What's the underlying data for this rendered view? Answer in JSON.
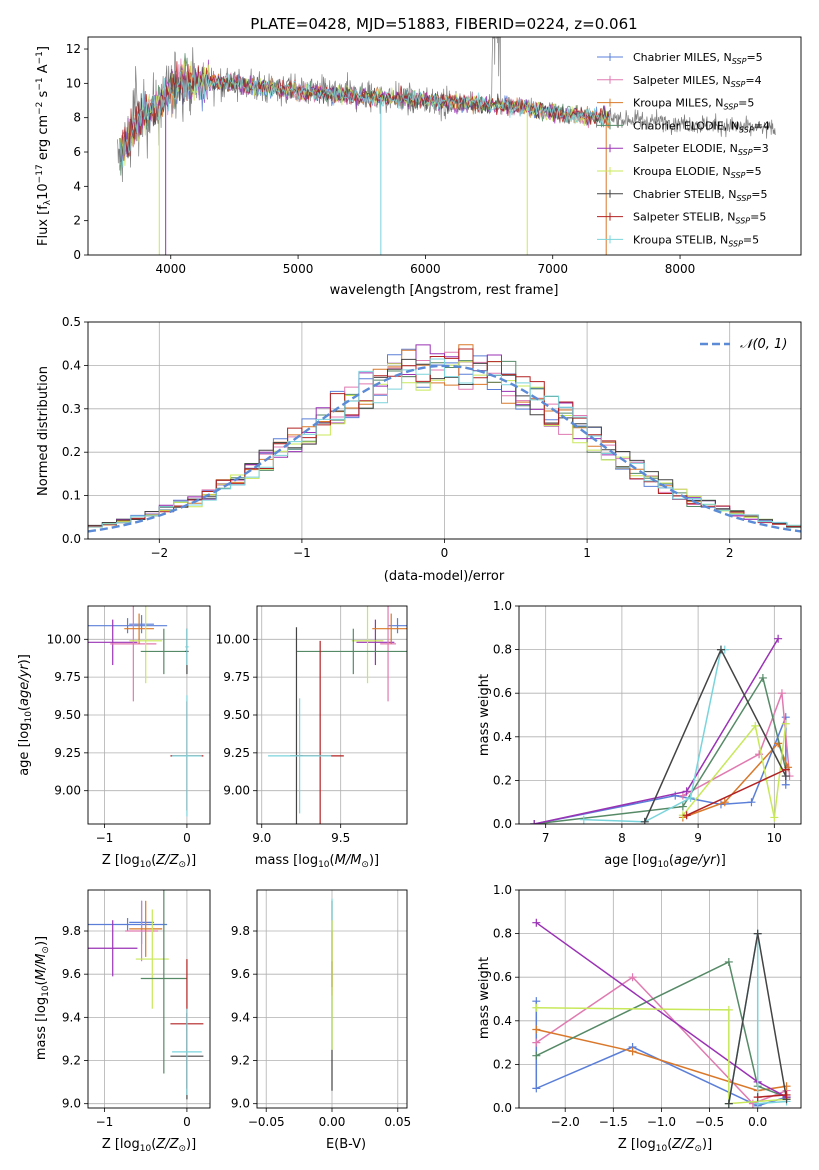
{
  "chart_data": [
    {
      "id": "spectrum",
      "type": "line",
      "title": "PLATE=0428, MJD=51883, FIBERID=0224, z=0.061",
      "xlabel": "wavelength [Angstrom, rest frame]",
      "ylabel": "Flux [f_λ 10^-17 erg cm^-2 s^-1 A^-1]",
      "xlim": [
        3350,
        8950
      ],
      "ylim": [
        0,
        12.7
      ],
      "xticks": [
        4000,
        5000,
        6000,
        7000,
        8000
      ],
      "yticks": [
        0,
        2,
        4,
        6,
        8,
        10,
        12
      ],
      "data_color": "#808080",
      "legend_position": "upper-right",
      "legend": [
        {
          "label": "Chabrier MILES, N",
          "sub": "SSP",
          "suffix": "=5",
          "color": "#5b7fd8"
        },
        {
          "label": "Salpeter MILES, N",
          "sub": "SSP",
          "suffix": "=4",
          "color": "#e07ab0"
        },
        {
          "label": "Kroupa MILES, N",
          "sub": "SSP",
          "suffix": "=5",
          "color": "#d9782a"
        },
        {
          "label": "Chabrier ELODIE, N",
          "sub": "SSP",
          "suffix": "=4",
          "color": "#568a67"
        },
        {
          "label": "Salpeter ELODIE, N",
          "sub": "SSP",
          "suffix": "=3",
          "color": "#9a32b5"
        },
        {
          "label": "Kroupa ELODIE, N",
          "sub": "SSP",
          "suffix": "=5",
          "color": "#c8e85a"
        },
        {
          "label": "Chabrier STELIB, N",
          "sub": "SSP",
          "suffix": "=5",
          "color": "#444444"
        },
        {
          "label": "Salpeter STELIB, N",
          "sub": "SSP",
          "suffix": "=5",
          "color": "#b22222"
        },
        {
          "label": "Kroupa STELIB, N",
          "sub": "SSP",
          "suffix": "=5",
          "color": "#7ad4dc"
        }
      ],
      "continuum": [
        [
          3580,
          5.5
        ],
        [
          3700,
          7.2
        ],
        [
          3800,
          8.2
        ],
        [
          3900,
          8.6
        ],
        [
          4000,
          9.6
        ],
        [
          4100,
          10.2
        ],
        [
          4200,
          10.0
        ],
        [
          4300,
          10.1
        ],
        [
          4500,
          10.0
        ],
        [
          4800,
          9.7
        ],
        [
          5200,
          9.4
        ],
        [
          5600,
          9.2
        ],
        [
          6000,
          9.0
        ],
        [
          6400,
          8.8
        ],
        [
          6800,
          8.6
        ],
        [
          7200,
          8.1
        ],
        [
          7600,
          7.9
        ],
        [
          8000,
          7.7
        ],
        [
          8400,
          7.5
        ],
        [
          8750,
          7.3
        ]
      ]
    },
    {
      "id": "residuals",
      "type": "line",
      "xlabel": "(data-model)/error",
      "ylabel": "Normed distribution",
      "xlim": [
        -2.5,
        2.5
      ],
      "ylim": [
        0,
        0.5
      ],
      "xticks": [
        -2,
        -1,
        0,
        1,
        2
      ],
      "yticks": [
        0.0,
        0.1,
        0.2,
        0.3,
        0.4,
        0.5
      ],
      "legend": [
        {
          "label": "𝒩(0, 1)",
          "color": "#5b8bd6",
          "style": "dashed"
        }
      ],
      "legend_position": "upper-right"
    },
    {
      "id": "age_vs_Z",
      "type": "scatter",
      "xlabel": "Z [log10(Z/Z_⊙)]",
      "ylabel": "age [log10(age/yr)]",
      "xlim": [
        -1.2,
        0.28
      ],
      "ylim": [
        8.78,
        10.22
      ],
      "xticks": [
        -1,
        0
      ],
      "yticks": [
        9.0,
        9.25,
        9.5,
        9.75,
        10.0
      ],
      "points": [
        {
          "x": -0.72,
          "y": 10.09,
          "xerr": 0.48,
          "yerr": 0.05,
          "color": "#5b7fd8"
        },
        {
          "x": -0.55,
          "y": 10.1,
          "xerr": 0.15,
          "yerr": 0.06,
          "color": "#5b7fd8"
        },
        {
          "x": -0.9,
          "y": 9.98,
          "xerr": 0.3,
          "yerr": 0.15,
          "color": "#9a32b5"
        },
        {
          "x": -0.65,
          "y": 9.97,
          "xerr": 0.28,
          "yerr": 0.38,
          "color": "#e07ab0"
        },
        {
          "x": -0.58,
          "y": 10.07,
          "xerr": 0.18,
          "yerr": 0.1,
          "color": "#d9782a"
        },
        {
          "x": -0.5,
          "y": 9.99,
          "xerr": 0.2,
          "yerr": 0.28,
          "color": "#c8e85a"
        },
        {
          "x": -0.28,
          "y": 9.92,
          "xerr": 0.28,
          "yerr": 0.15,
          "color": "#568a67"
        },
        {
          "x": 0.0,
          "y": 9.92,
          "xerr": 0.02,
          "yerr": 0.15,
          "color": "#444444"
        },
        {
          "x": 0.0,
          "y": 9.23,
          "xerr": 0.2,
          "yerr": 0.36,
          "color": "#b22222"
        },
        {
          "x": 0.0,
          "y": 9.23,
          "xerr": 0.18,
          "yerr": 0.4,
          "color": "#7ad4dc"
        },
        {
          "x": 0.0,
          "y": 9.95,
          "xerr": 0.02,
          "yerr": 0.12,
          "color": "#7ad4dc"
        }
      ]
    },
    {
      "id": "age_vs_mass",
      "type": "scatter",
      "xlabel": "mass [log10(M/M_⊙)]",
      "xlim": [
        8.97,
        9.92
      ],
      "ylim": [
        8.78,
        10.22
      ],
      "xticks": [
        9.0,
        9.5
      ],
      "yticks": [
        9.0,
        9.25,
        9.5,
        9.75,
        10.0
      ],
      "points": [
        {
          "x": 9.86,
          "y": 10.09,
          "xerr": 0.06,
          "yerr": 0.05,
          "color": "#5b7fd8"
        },
        {
          "x": 9.72,
          "y": 9.98,
          "xerr": 0.12,
          "yerr": 0.15,
          "color": "#9a32b5"
        },
        {
          "x": 9.8,
          "y": 9.97,
          "xerr": 0.05,
          "yerr": 0.38,
          "color": "#e07ab0"
        },
        {
          "x": 9.82,
          "y": 10.07,
          "xerr": 0.12,
          "yerr": 0.1,
          "color": "#d9782a"
        },
        {
          "x": 9.67,
          "y": 9.99,
          "xerr": 0.1,
          "yerr": 0.28,
          "color": "#c8e85a"
        },
        {
          "x": 9.58,
          "y": 9.92,
          "xerr": 0.36,
          "yerr": 0.15,
          "color": "#568a67"
        },
        {
          "x": 9.22,
          "y": 9.23,
          "xerr": 0.04,
          "yerr": 0.85,
          "color": "#444444"
        },
        {
          "x": 9.37,
          "y": 9.23,
          "xerr": 0.15,
          "yerr": 0.76,
          "color": "#b22222"
        },
        {
          "x": 9.24,
          "y": 9.23,
          "xerr": 0.2,
          "yerr": 0.38,
          "color": "#7ad4dc"
        }
      ]
    },
    {
      "id": "weight_vs_age",
      "type": "line",
      "xlabel": "age [log10(age/yr)]",
      "ylabel": "mass weight",
      "xlim": [
        6.65,
        10.35
      ],
      "ylim": [
        0,
        1.0
      ],
      "xticks": [
        7,
        8,
        9,
        10
      ],
      "yticks": [
        0.0,
        0.2,
        0.4,
        0.6,
        0.8,
        1.0
      ],
      "series": [
        {
          "color": "#5b7fd8",
          "points": [
            [
              6.85,
              0.0
            ],
            [
              8.7,
              0.13
            ],
            [
              9.3,
              0.09
            ],
            [
              9.7,
              0.1
            ],
            [
              10.15,
              0.49
            ],
            [
              10.15,
              0.18
            ]
          ]
        },
        {
          "color": "#e07ab0",
          "points": [
            [
              8.8,
              0.13
            ],
            [
              9.8,
              0.32
            ],
            [
              10.1,
              0.6
            ],
            [
              10.2,
              0.22
            ]
          ]
        },
        {
          "color": "#d9782a",
          "points": [
            [
              8.8,
              0.03
            ],
            [
              9.35,
              0.1
            ],
            [
              10.05,
              0.37
            ],
            [
              10.18,
              0.26
            ]
          ]
        },
        {
          "color": "#568a67",
          "points": [
            [
              6.85,
              0.0
            ],
            [
              8.8,
              0.08
            ],
            [
              9.85,
              0.67
            ],
            [
              10.15,
              0.25
            ]
          ]
        },
        {
          "color": "#9a32b5",
          "points": [
            [
              6.85,
              0.0
            ],
            [
              8.85,
              0.15
            ],
            [
              10.05,
              0.85
            ]
          ]
        },
        {
          "color": "#c8e85a",
          "points": [
            [
              8.8,
              0.04
            ],
            [
              9.75,
              0.45
            ],
            [
              10.0,
              0.03
            ],
            [
              10.15,
              0.46
            ]
          ]
        },
        {
          "color": "#7ad4dc",
          "points": [
            [
              7.5,
              0.02
            ],
            [
              8.3,
              0.01
            ],
            [
              8.9,
              0.12
            ],
            [
              9.3,
              0.8
            ],
            [
              9.35,
              0.8
            ]
          ]
        },
        {
          "color": "#444444",
          "points": [
            [
              8.3,
              0.01
            ],
            [
              9.3,
              0.8
            ],
            [
              10.15,
              0.22
            ]
          ]
        },
        {
          "color": "#b22222",
          "points": [
            [
              8.85,
              0.04
            ],
            [
              10.15,
              0.25
            ]
          ]
        }
      ]
    },
    {
      "id": "mass_vs_Z",
      "type": "scatter",
      "xlabel": "Z [log10(Z/Z_⊙)]",
      "ylabel": "mass [log10(M/M_⊙)]",
      "xlim": [
        -1.2,
        0.28
      ],
      "ylim": [
        8.98,
        9.99
      ],
      "xticks": [
        -1,
        0
      ],
      "yticks": [
        9.0,
        9.2,
        9.4,
        9.6,
        9.8
      ],
      "points": [
        {
          "x": -0.72,
          "y": 9.83,
          "xerr": 0.48,
          "yerr": 0.03,
          "color": "#5b7fd8"
        },
        {
          "x": -0.55,
          "y": 9.84,
          "xerr": 0.15,
          "yerr": 0.1,
          "color": "#5b7fd8"
        },
        {
          "x": -0.9,
          "y": 9.72,
          "xerr": 0.3,
          "yerr": 0.13,
          "color": "#9a32b5"
        },
        {
          "x": -0.55,
          "y": 9.8,
          "xerr": 0.2,
          "yerr": 0.14,
          "color": "#e07ab0"
        },
        {
          "x": -0.5,
          "y": 9.81,
          "xerr": 0.2,
          "yerr": 0.13,
          "color": "#d9782a"
        },
        {
          "x": -0.42,
          "y": 9.67,
          "xerr": 0.2,
          "yerr": 0.23,
          "color": "#c8e85a"
        },
        {
          "x": -0.28,
          "y": 9.58,
          "xerr": 0.28,
          "yerr": 0.44,
          "color": "#568a67"
        },
        {
          "x": 0.0,
          "y": 9.22,
          "xerr": 0.2,
          "yerr": 0.2,
          "color": "#444444"
        },
        {
          "x": 0.0,
          "y": 9.37,
          "xerr": 0.2,
          "yerr": 0.3,
          "color": "#b22222"
        },
        {
          "x": 0.0,
          "y": 9.24,
          "xerr": 0.18,
          "yerr": 0.2,
          "color": "#7ad4dc"
        }
      ]
    },
    {
      "id": "mass_vs_EBV",
      "type": "scatter",
      "xlabel": "E(B-V)",
      "xlim": [
        -0.057,
        0.057
      ],
      "ylim": [
        8.98,
        9.99
      ],
      "xticks": [
        -0.05,
        0.0,
        0.05
      ],
      "yticks": [
        9.0,
        9.2,
        9.4,
        9.6,
        9.8
      ],
      "points": [
        {
          "x": 0.0,
          "y": 9.5,
          "xerr": 0.0,
          "yerr": 0.44,
          "color": "#444444"
        },
        {
          "x": 0.0,
          "y": 9.6,
          "xerr": 0.0,
          "yerr": 0.35,
          "color": "#7ad4dc"
        },
        {
          "x": 0.0,
          "y": 9.65,
          "xerr": 0.0,
          "yerr": 0.15,
          "color": "#d9782a"
        },
        {
          "x": 0.0,
          "y": 9.6,
          "xerr": 0.0,
          "yerr": 0.06,
          "color": "#b22222"
        },
        {
          "x": 0.0,
          "y": 9.55,
          "xerr": 0.0,
          "yerr": 0.3,
          "color": "#c8e85a"
        }
      ]
    },
    {
      "id": "weight_vs_Z",
      "type": "line",
      "xlabel": "Z [log10(Z/Z_⊙)]",
      "ylabel": "mass weight",
      "xlim": [
        -2.48,
        0.45
      ],
      "ylim": [
        0,
        1.0
      ],
      "xticks": [
        -2.0,
        -1.5,
        -1.0,
        -0.5,
        0.0
      ],
      "yticks": [
        0.0,
        0.2,
        0.4,
        0.6,
        0.8,
        1.0
      ],
      "series": [
        {
          "color": "#5b7fd8",
          "points": [
            [
              -2.3,
              0.49
            ],
            [
              -2.3,
              0.09
            ],
            [
              -1.3,
              0.28
            ],
            [
              0.0,
              0.01
            ],
            [
              0.3,
              0.05
            ]
          ]
        },
        {
          "color": "#e07ab0",
          "points": [
            [
              -2.3,
              0.3
            ],
            [
              -1.3,
              0.6
            ],
            [
              -0.05,
              0.02
            ],
            [
              0.3,
              0.08
            ]
          ]
        },
        {
          "color": "#d9782a",
          "points": [
            [
              -2.3,
              0.36
            ],
            [
              -1.3,
              0.26
            ],
            [
              0.0,
              0.08
            ],
            [
              0.3,
              0.1
            ]
          ]
        },
        {
          "color": "#568a67",
          "points": [
            [
              -2.3,
              0.24
            ],
            [
              -0.3,
              0.67
            ],
            [
              0.0,
              0.1
            ],
            [
              0.3,
              0.05
            ]
          ]
        },
        {
          "color": "#9a32b5",
          "points": [
            [
              -2.3,
              0.85
            ],
            [
              0.0,
              0.12
            ],
            [
              0.3,
              0.05
            ]
          ]
        },
        {
          "color": "#c8e85a",
          "points": [
            [
              -2.3,
              0.46
            ],
            [
              -0.3,
              0.45
            ],
            [
              -0.3,
              0.02
            ],
            [
              0.3,
              0.04
            ]
          ]
        },
        {
          "color": "#7ad4dc",
          "points": [
            [
              -0.3,
              0.02
            ],
            [
              0.0,
              0.8
            ],
            [
              0.0,
              0.02
            ],
            [
              0.3,
              0.03
            ]
          ]
        },
        {
          "color": "#444444",
          "points": [
            [
              -0.3,
              0.02
            ],
            [
              0.0,
              0.8
            ],
            [
              0.3,
              0.04
            ]
          ]
        },
        {
          "color": "#b22222",
          "points": [
            [
              0.0,
              0.05
            ],
            [
              0.3,
              0.06
            ]
          ]
        }
      ]
    }
  ]
}
